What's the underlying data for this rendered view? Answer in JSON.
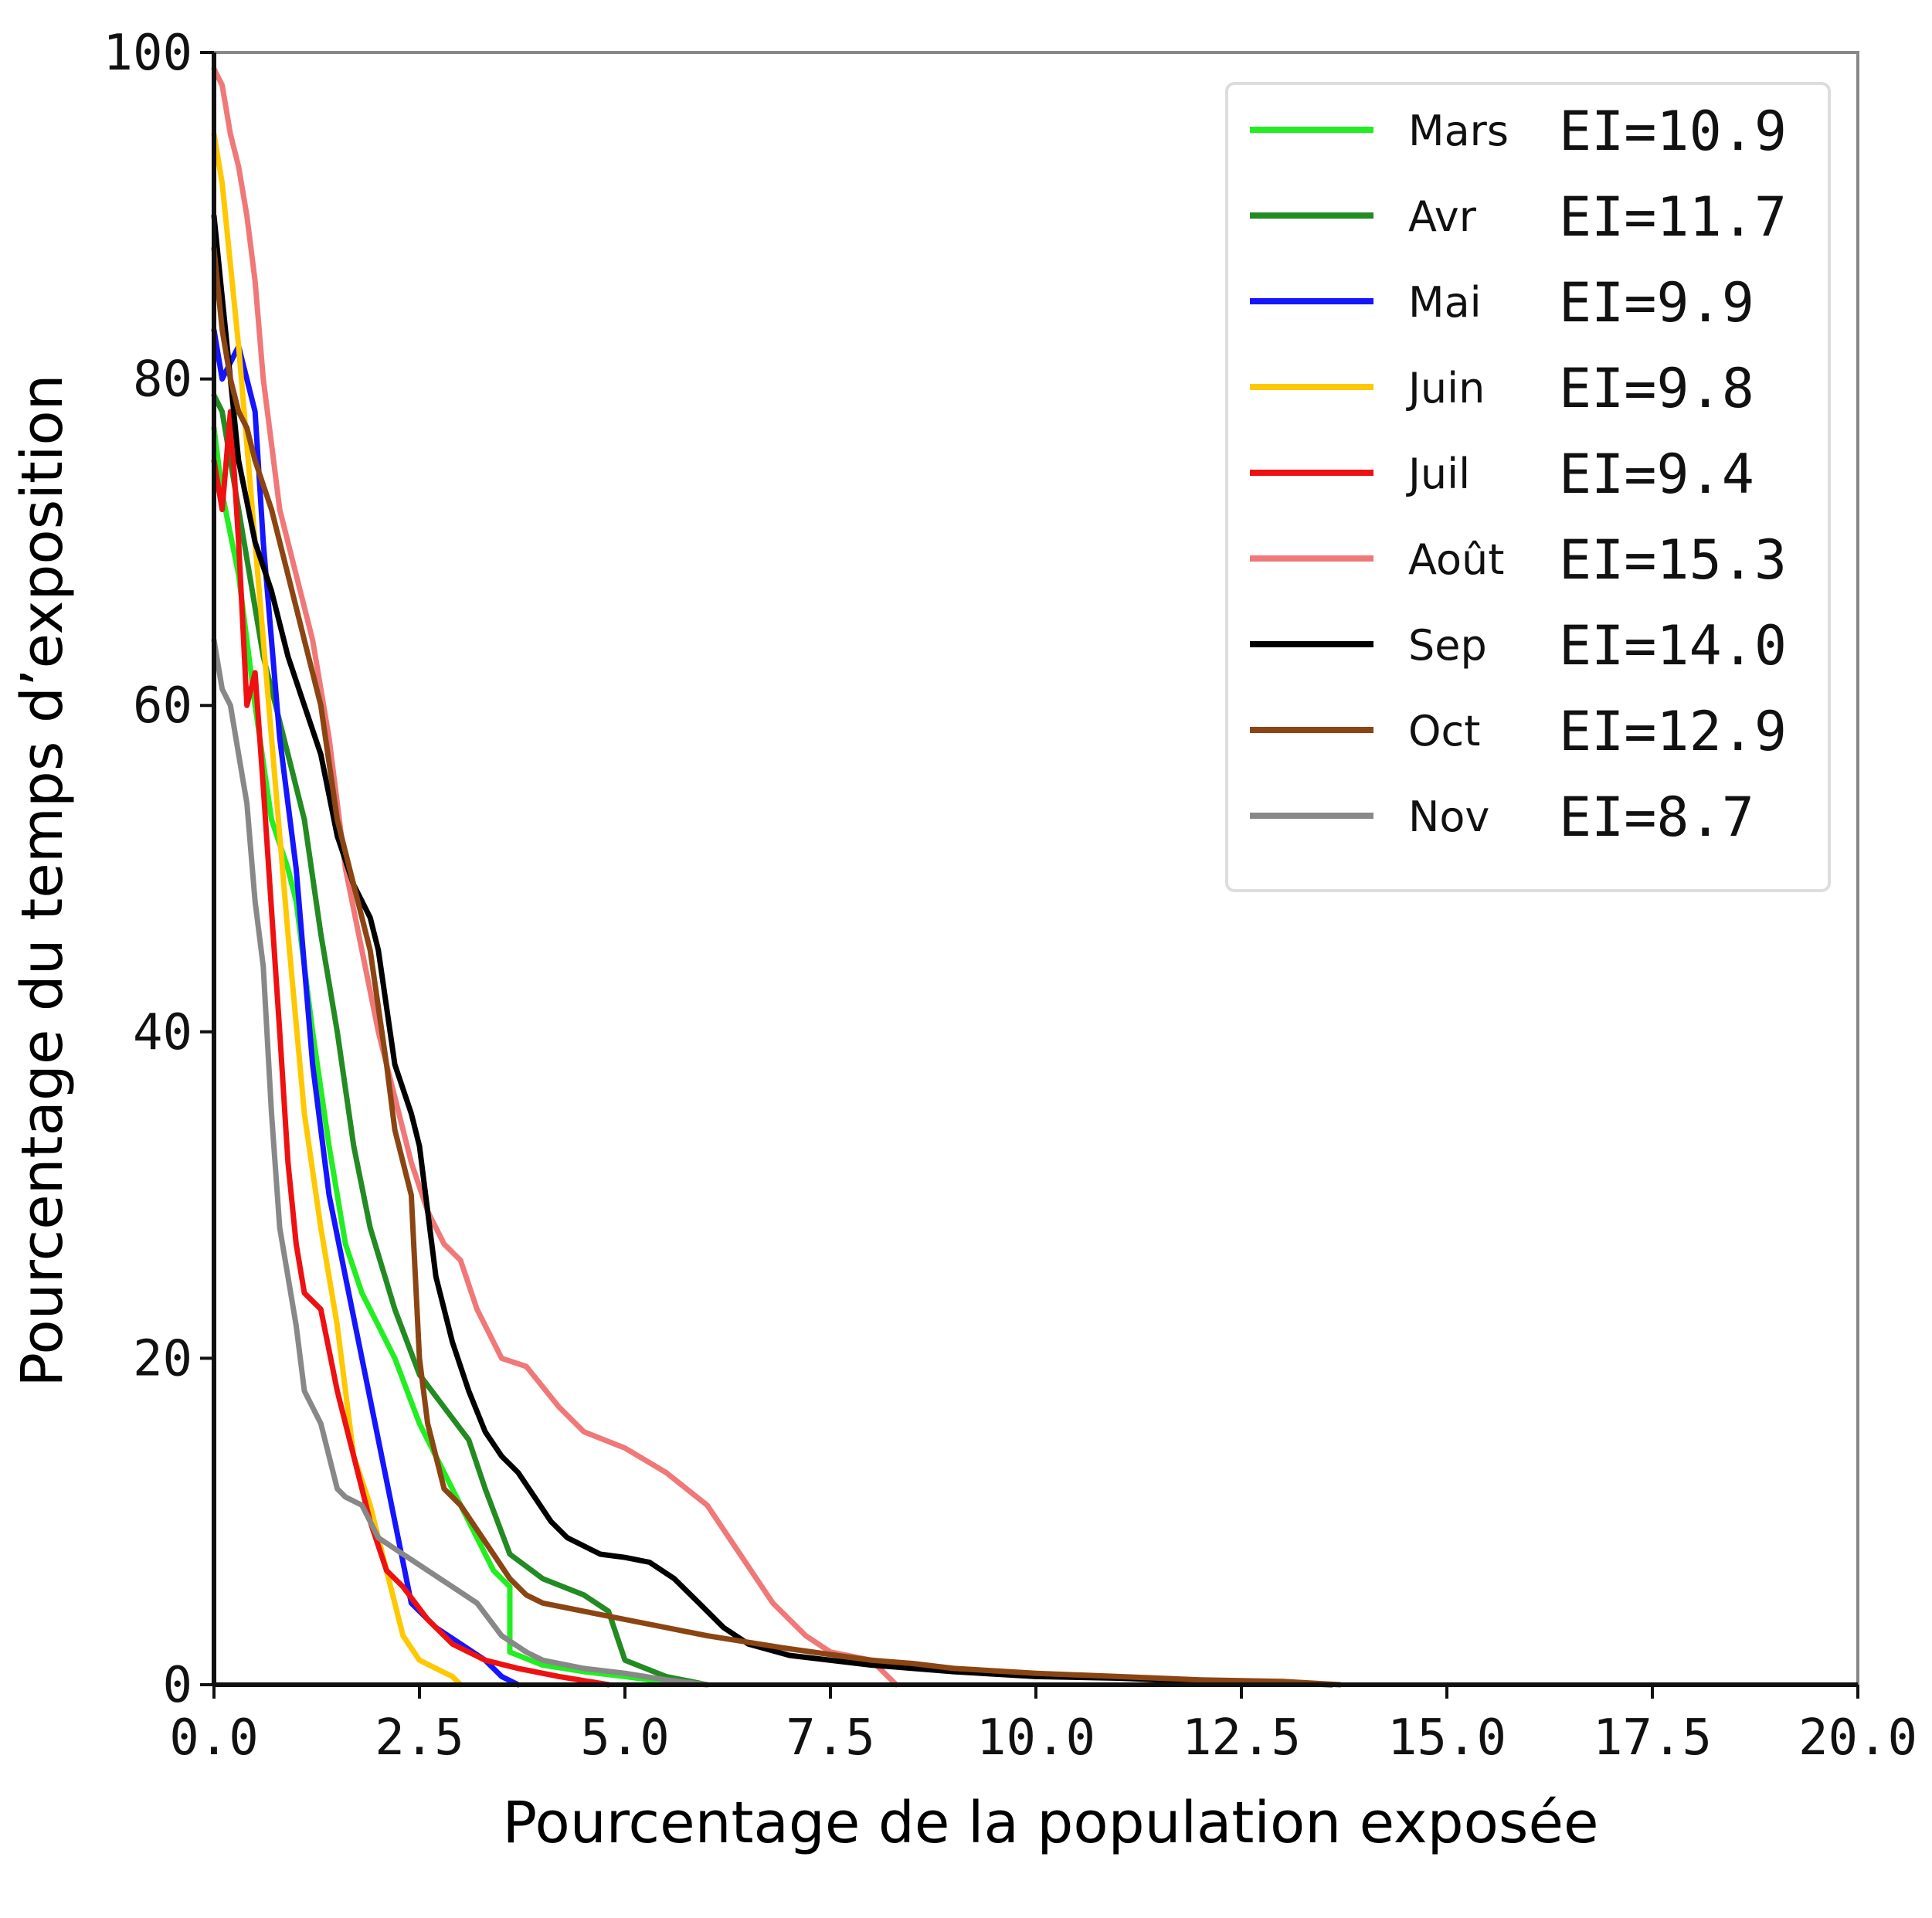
{
  "chart_data": {
    "type": "line",
    "title": "",
    "xlabel": "Pourcentage de la population exposée",
    "ylabel": "Pourcentage du temps d’exposition",
    "xlim": [
      0,
      20
    ],
    "ylim": [
      0,
      100
    ],
    "xticks": [
      "0.0",
      "2.5",
      "5.0",
      "7.5",
      "10.0",
      "12.5",
      "15.0",
      "17.5",
      "20.0"
    ],
    "yticks": [
      "0",
      "20",
      "40",
      "60",
      "80",
      "100"
    ],
    "grid": false,
    "legend_position": "top-right",
    "series": [
      {
        "name": "Mars",
        "ei": "EI=10.9",
        "color": "#22ee22",
        "x": [
          0,
          0.1,
          0.3,
          0.5,
          0.7,
          0.9,
          1.0,
          1.2,
          1.4,
          1.6,
          1.8,
          2.0,
          2.2,
          2.5,
          2.8,
          3.1,
          3.4,
          3.6,
          3.6,
          4.0,
          4.5,
          5.0,
          5.3,
          6.0
        ],
        "y": [
          77,
          73,
          68,
          60,
          53,
          50,
          48,
          40,
          33,
          27,
          24,
          22,
          20,
          16,
          13,
          10,
          7,
          6,
          2,
          1.2,
          0.8,
          0.5,
          0.3,
          0
        ]
      },
      {
        "name": "Avr",
        "ei": "EI=11.7",
        "color": "#228b22",
        "x": [
          0,
          0.1,
          0.3,
          0.6,
          0.9,
          1.1,
          1.3,
          1.5,
          1.7,
          1.9,
          2.2,
          2.5,
          2.8,
          3.1,
          3.3,
          3.6,
          4.0,
          4.5,
          4.8,
          5.0,
          5.5,
          6.0
        ],
        "y": [
          79,
          78,
          72,
          63,
          57,
          53,
          46,
          40,
          33,
          28,
          23,
          19,
          17,
          15,
          12,
          8,
          6.5,
          5.5,
          4.5,
          1.5,
          0.5,
          0
        ]
      },
      {
        "name": "Mai",
        "ei": "EI=9.9",
        "color": "#1515ff",
        "x": [
          0,
          0.1,
          0.3,
          0.5,
          0.6,
          0.8,
          1.0,
          1.2,
          1.4,
          1.6,
          1.8,
          2.0,
          2.2,
          2.4,
          2.7,
          3.0,
          3.3,
          3.5,
          3.7
        ],
        "y": [
          83,
          80,
          82,
          78,
          70,
          58,
          50,
          38,
          30,
          25,
          20,
          15,
          10,
          5,
          3.5,
          2.5,
          1.5,
          0.5,
          0
        ]
      },
      {
        "name": "Juin",
        "ei": "EI=9.8",
        "color": "#ffc800",
        "x": [
          0,
          0.1,
          0.2,
          0.3,
          0.5,
          0.7,
          0.9,
          1.1,
          1.3,
          1.5,
          1.7,
          1.9,
          2.1,
          2.3,
          2.5,
          2.7,
          2.9,
          3.0
        ],
        "y": [
          95,
          92,
          87,
          82,
          70,
          58,
          46,
          35,
          28,
          22,
          14,
          11,
          7,
          3,
          1.5,
          1,
          0.5,
          0
        ]
      },
      {
        "name": "Juil",
        "ei": "EI=9.4",
        "color": "#ee1111",
        "x": [
          0,
          0.1,
          0.2,
          0.3,
          0.4,
          0.5,
          0.6,
          0.8,
          0.9,
          1.0,
          1.1,
          1.3,
          1.5,
          1.7,
          1.9,
          2.1,
          2.3,
          2.6,
          2.9,
          3.3,
          3.7,
          4.2,
          4.8
        ],
        "y": [
          75,
          72,
          78,
          70,
          60,
          62,
          55,
          40,
          32,
          27,
          24,
          23,
          18,
          14,
          10,
          7,
          6,
          4,
          2.5,
          1.5,
          1,
          0.5,
          0
        ]
      },
      {
        "name": "Août",
        "ei": "EI=15.3",
        "color": "#f07878",
        "x": [
          0,
          0.1,
          0.2,
          0.3,
          0.4,
          0.5,
          0.6,
          0.7,
          0.8,
          1.0,
          1.2,
          1.4,
          1.6,
          1.8,
          2.0,
          2.2,
          2.4,
          2.6,
          2.8,
          3.0,
          3.2,
          3.5,
          3.8,
          4.2,
          4.5,
          5.0,
          5.5,
          6.0,
          6.4,
          6.8,
          7.2,
          7.5,
          8.0,
          8.3
        ],
        "y": [
          99,
          98,
          95,
          93,
          90,
          86,
          80,
          76,
          72,
          68,
          64,
          58,
          50,
          45,
          40,
          36,
          32,
          29,
          27,
          26,
          23,
          20,
          19.5,
          17,
          15.5,
          14.5,
          13,
          11,
          8,
          5,
          3,
          2,
          1.5,
          0
        ]
      },
      {
        "name": "Sep",
        "ei": "EI=14.0",
        "color": "#000000",
        "x": [
          0,
          0.1,
          0.2,
          0.3,
          0.5,
          0.7,
          0.9,
          1.1,
          1.3,
          1.5,
          1.7,
          1.9,
          2.0,
          2.2,
          2.4,
          2.5,
          2.7,
          2.9,
          3.1,
          3.3,
          3.5,
          3.7,
          3.9,
          4.1,
          4.3,
          4.5,
          4.7,
          5.0,
          5.3,
          5.6,
          5.9,
          6.2,
          6.5,
          7.0,
          8.0,
          9.0,
          10.0,
          11.0,
          12.0,
          13.0,
          13.6
        ],
        "y": [
          90,
          85,
          80,
          75,
          70,
          67,
          63,
          60,
          57,
          52,
          49,
          47,
          45,
          38,
          35,
          33,
          25,
          21,
          18,
          15.5,
          14,
          13,
          11.5,
          10,
          9,
          8.5,
          8,
          7.8,
          7.5,
          6.5,
          5,
          3.5,
          2.5,
          1.8,
          1.2,
          0.8,
          0.5,
          0.4,
          0.2,
          0.1,
          0
        ]
      },
      {
        "name": "Oct",
        "ei": "EI=12.9",
        "color": "#8b4513",
        "x": [
          0,
          0.1,
          0.2,
          0.3,
          0.4,
          0.5,
          0.7,
          0.9,
          1.1,
          1.3,
          1.5,
          1.7,
          1.9,
          2.1,
          2.2,
          2.4,
          2.5,
          2.6,
          2.8,
          3.0,
          3.2,
          3.4,
          3.6,
          3.8,
          4.0,
          4.5,
          5.0,
          5.5,
          6.0,
          7.0,
          8.0,
          8.5,
          9.0,
          10.0,
          11.0,
          12.0,
          13.0,
          13.7
        ],
        "y": [
          88,
          83,
          80,
          78,
          77,
          75,
          72,
          68,
          64,
          60,
          53,
          49,
          45,
          38,
          34,
          30,
          20,
          16,
          12,
          11,
          9.5,
          8,
          6.5,
          5.5,
          5,
          4.5,
          4,
          3.5,
          3,
          2.2,
          1.5,
          1.3,
          1,
          0.7,
          0.5,
          0.3,
          0.2,
          0
        ]
      },
      {
        "name": "Nov",
        "ei": "EI=8.7",
        "color": "#888888",
        "x": [
          0,
          0.1,
          0.2,
          0.3,
          0.4,
          0.5,
          0.6,
          0.7,
          0.8,
          0.9,
          1.0,
          1.1,
          1.3,
          1.5,
          1.6,
          1.8,
          2.0,
          2.3,
          2.6,
          2.9,
          3.2,
          3.5,
          3.8,
          4.0,
          4.5,
          5.0,
          5.5,
          6.0
        ],
        "y": [
          64,
          61,
          60,
          57,
          54,
          48,
          44,
          35,
          28,
          25,
          22,
          18,
          16,
          12,
          11.5,
          11,
          9,
          8,
          7,
          6,
          5,
          3,
          2,
          1.5,
          1,
          0.7,
          0.3,
          0
        ]
      }
    ]
  }
}
